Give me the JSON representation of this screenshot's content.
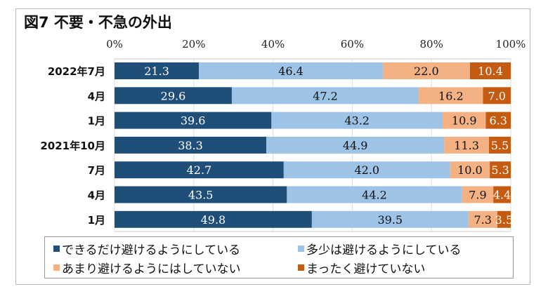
{
  "chart_data": {
    "type": "bar",
    "orientation": "horizontal-stacked-100",
    "title": "図7 不要・不急の外出",
    "categories": [
      "2022年7月",
      "4月",
      "1月",
      "2021年10月",
      "7月",
      "4月",
      "1月"
    ],
    "x_ticks": [
      "0%",
      "20%",
      "40%",
      "60%",
      "80%",
      "100%"
    ],
    "xlim": [
      0,
      100
    ],
    "grid": true,
    "legend_position": "bottom",
    "series": [
      {
        "name": "できるだけ避けるようにしている",
        "color": "#1f4e79",
        "values": [
          21.3,
          29.6,
          39.6,
          38.3,
          42.7,
          43.5,
          49.8
        ]
      },
      {
        "name": "多少は避けるようにしている",
        "color": "#9dc3e6",
        "values": [
          46.4,
          47.2,
          43.2,
          44.9,
          42.0,
          44.2,
          39.5
        ]
      },
      {
        "name": "あまり避けるようにはしていない",
        "color": "#f4b183",
        "values": [
          22.0,
          16.2,
          10.9,
          11.3,
          10.0,
          7.9,
          7.3
        ]
      },
      {
        "name": "まったく避けていない",
        "color": "#c55a11",
        "values": [
          10.4,
          7.0,
          6.3,
          5.5,
          5.3,
          4.4,
          3.5
        ]
      }
    ]
  }
}
